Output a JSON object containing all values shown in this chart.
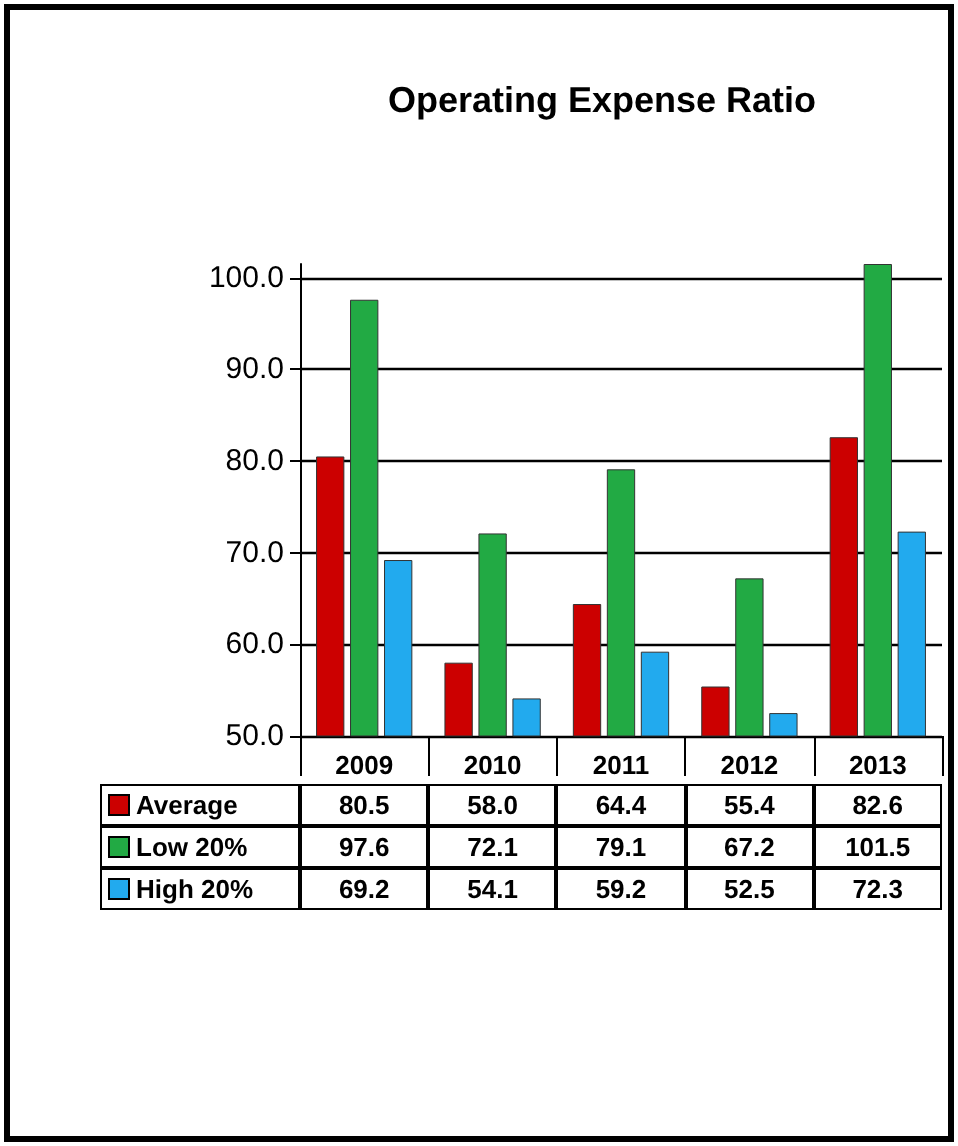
{
  "chart_data": {
    "type": "bar",
    "title": "Operating Expense Ratio",
    "categories": [
      "2009",
      "2010",
      "2011",
      "2012",
      "2013"
    ],
    "series": [
      {
        "name": "Average",
        "color": "#cc0000",
        "values": [
          80.5,
          58.0,
          64.4,
          55.4,
          82.6
        ],
        "value_labels": [
          "80.5",
          "58.0",
          "64.4",
          "55.4",
          "82.6"
        ]
      },
      {
        "name": "Low 20%",
        "color": "#22aa44",
        "values": [
          97.6,
          72.1,
          79.1,
          67.2,
          101.5
        ],
        "value_labels": [
          "97.6",
          "72.1",
          "79.1",
          "67.2",
          "101.5"
        ]
      },
      {
        "name": "High 20%",
        "color": "#22aaee",
        "values": [
          69.2,
          54.1,
          59.2,
          52.5,
          72.3
        ],
        "value_labels": [
          "69.2",
          "54.1",
          "59.2",
          "52.5",
          "72.3"
        ]
      }
    ],
    "ylim": [
      50,
      101.5
    ],
    "yticks": [
      {
        "value": 50,
        "label": "50.0"
      },
      {
        "value": 60,
        "label": "60.0"
      },
      {
        "value": 70,
        "label": "70.0"
      },
      {
        "value": 80,
        "label": "80.0"
      },
      {
        "value": 90,
        "label": "90.0"
      },
      {
        "value": 100,
        "label": "100.0"
      }
    ],
    "grid": "y",
    "legend": "bottom"
  }
}
